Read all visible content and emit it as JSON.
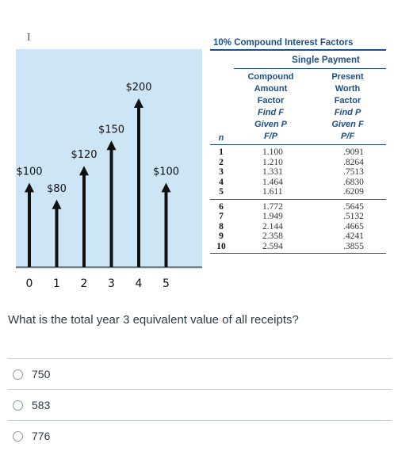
{
  "cursor_glyph": "I",
  "cash_flow": {
    "background_color": "#cce6f6",
    "arrow_color": "#111111",
    "periods": [
      "0",
      "1",
      "2",
      "3",
      "4",
      "5"
    ],
    "receipts": [
      {
        "period": 0,
        "amount": 100,
        "label": "$100"
      },
      {
        "period": 1,
        "amount": 80,
        "label": "$80"
      },
      {
        "period": 2,
        "amount": 120,
        "label": "$120"
      },
      {
        "period": 3,
        "amount": 150,
        "label": "$150"
      },
      {
        "period": 4,
        "amount": 200,
        "label": "$200"
      },
      {
        "period": 5,
        "amount": 100,
        "label": "$100"
      }
    ]
  },
  "factor_table": {
    "title": "10%  Compound Interest Factors",
    "subtitle": "Single Payment",
    "n_header": "n",
    "col1_header": [
      "Compound",
      "Amount",
      "Factor",
      "Find F",
      "Given P",
      "F/P"
    ],
    "col2_header": [
      "Present",
      "Worth",
      "Factor",
      "Find P",
      "Given F",
      "P/F"
    ],
    "group1": [
      {
        "n": "1",
        "fp": "1.100",
        "pf": ".9091"
      },
      {
        "n": "2",
        "fp": "1.210",
        "pf": ".8264"
      },
      {
        "n": "3",
        "fp": "1.331",
        "pf": ".7513"
      },
      {
        "n": "4",
        "fp": "1.464",
        "pf": ".6830"
      },
      {
        "n": "5",
        "fp": "1.611",
        "pf": ".6209"
      }
    ],
    "group2": [
      {
        "n": "6",
        "fp": "1.772",
        "pf": ".5645"
      },
      {
        "n": "7",
        "fp": "1.949",
        "pf": ".5132"
      },
      {
        "n": "8",
        "fp": "2.144",
        "pf": ".4665"
      },
      {
        "n": "9",
        "fp": "2.358",
        "pf": ".4241"
      },
      {
        "n": "10",
        "fp": "2.594",
        "pf": ".3855"
      }
    ]
  },
  "question": {
    "text": "What is the total year  3 equivalent value of all receipts?"
  },
  "answers": [
    {
      "label": "750",
      "selected": false
    },
    {
      "label": "583",
      "selected": false
    },
    {
      "label": "776",
      "selected": false
    }
  ]
}
